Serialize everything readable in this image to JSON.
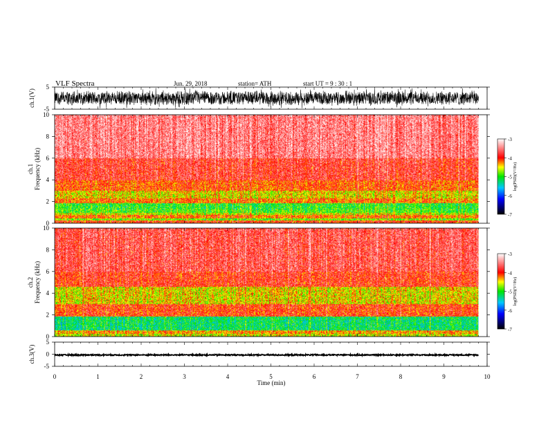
{
  "header": {
    "title": "VLF  Spectra",
    "date": "Jun. 29, 2018",
    "station": "station= ATH",
    "start": "start  UT  =    9  : 30 : 1"
  },
  "colorbar": {
    "label": "log(PSD)(V²/Hz)",
    "ticks": [
      "-3",
      "-4",
      "-5",
      "-6",
      "-7"
    ],
    "colors": [
      "#ffffff",
      "#ff0000",
      "#ffff00",
      "#00ff00",
      "#0000ff",
      "#000000"
    ]
  },
  "chart_data": [
    {
      "type": "line",
      "name": "ch1-waveform",
      "ylabel": "ch.1(V)",
      "ylim": [
        -5,
        5
      ],
      "yticks": [
        "5",
        "-5"
      ],
      "xlim": [
        0,
        10
      ],
      "x_end": 9.8,
      "description_values": {
        "amplitude_typical": 3.5
      }
    },
    {
      "type": "heatmap",
      "name": "ch1-spectrogram",
      "ylabel": "ch.1\nFrequency  (kHz)",
      "ylim": [
        0,
        10
      ],
      "yticks": [
        "0",
        "2",
        "4",
        "6",
        "8",
        "10"
      ],
      "xlim": [
        0,
        10
      ],
      "x_end": 9.8,
      "zlim": [
        -7,
        -3
      ],
      "bands_khz_to_log_psd": [
        [
          0.0,
          0.3,
          -4.0
        ],
        [
          0.3,
          0.5,
          -4.8
        ],
        [
          0.5,
          0.8,
          -4.2
        ],
        [
          0.8,
          1.0,
          -4.6
        ],
        [
          1.0,
          1.3,
          -4.9
        ],
        [
          1.3,
          1.9,
          -5.0
        ],
        [
          1.9,
          2.3,
          -4.2
        ],
        [
          2.3,
          3.0,
          -4.5
        ],
        [
          3.0,
          4.0,
          -4.1
        ],
        [
          4.0,
          6.0,
          -3.8
        ],
        [
          6.0,
          10.0,
          -3.5
        ]
      ]
    },
    {
      "type": "heatmap",
      "name": "ch2-spectrogram",
      "ylabel": "ch.2\nFrequency  (kHz)",
      "ylim": [
        0,
        10
      ],
      "yticks": [
        "0",
        "2",
        "4",
        "6",
        "8",
        "10"
      ],
      "xlim": [
        0,
        10
      ],
      "x_end": 9.8,
      "zlim": [
        -7,
        -3
      ],
      "bands_khz_to_log_psd": [
        [
          0.0,
          0.3,
          -4.6
        ],
        [
          0.3,
          0.6,
          -4.3
        ],
        [
          0.6,
          1.9,
          -5.2
        ],
        [
          1.9,
          2.1,
          -4.0
        ],
        [
          2.1,
          3.0,
          -4.0
        ],
        [
          3.0,
          4.6,
          -4.5
        ],
        [
          4.6,
          6.0,
          -3.9
        ],
        [
          6.0,
          10.0,
          -3.7
        ]
      ]
    },
    {
      "type": "line",
      "name": "ch3-waveform",
      "ylabel": "ch.3(V)",
      "ylim": [
        -5,
        5
      ],
      "yticks": [
        "5",
        "0",
        "-5"
      ],
      "xlim": [
        0,
        10
      ],
      "x_end": 9.8,
      "description_values": {
        "level": -0.3,
        "amplitude_typical": 0.3
      }
    }
  ],
  "xaxis": {
    "label": "Time  (min)",
    "ticks": [
      "0",
      "1",
      "2",
      "3",
      "4",
      "5",
      "6",
      "7",
      "8",
      "9",
      "10"
    ]
  }
}
